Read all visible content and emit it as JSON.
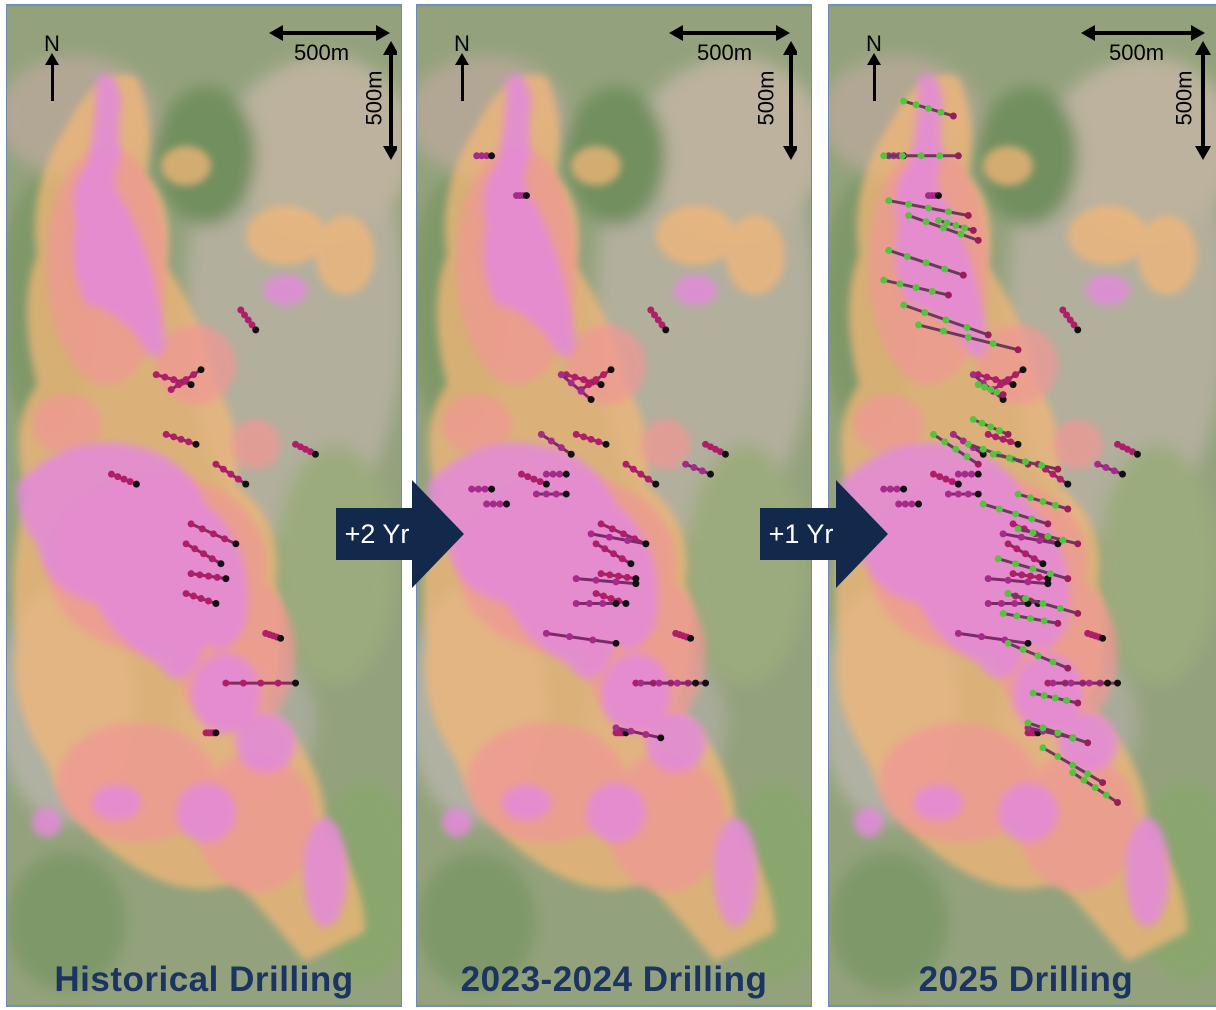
{
  "panels": [
    {
      "title": "Historical Drilling",
      "north_label": "N",
      "scale_h": "500m",
      "scale_v": "500m"
    },
    {
      "title": "2023-2024 Drilling",
      "north_label": "N",
      "scale_h": "500m",
      "scale_v": "500m"
    },
    {
      "title": "2025 Drilling",
      "north_label": "N",
      "scale_h": "500m",
      "scale_v": "500m"
    }
  ],
  "steps": [
    {
      "label": "+2 Yr"
    },
    {
      "label": "+1 Yr"
    }
  ],
  "colors": {
    "title": "#1c3461",
    "step_fill": "#13294b",
    "anomaly_high": "#e07ad6",
    "anomaly_mid": "#ee8a86",
    "anomaly_low": "#f2ad66",
    "forest": "#5f7f4a",
    "terrain": "#a9a08c",
    "hole_marker": "#111111",
    "hole_2025": "#54c43e",
    "hole_assay": "#c2185b"
  },
  "icons": {
    "north": "north-arrow-icon",
    "scale": "double-arrow-icon"
  }
}
